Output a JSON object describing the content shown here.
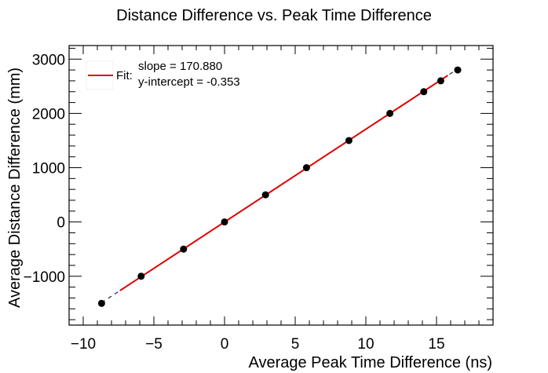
{
  "chart_data": {
    "type": "scatter",
    "title": "Distance Difference vs. Peak Time Difference",
    "xlabel": "Average Peak Time Difference (ns)",
    "ylabel": "Average Distance Difference (mm)",
    "xlim": [
      -11,
      19
    ],
    "ylim": [
      -1900,
      3250
    ],
    "xticks": [
      -10,
      -5,
      0,
      5,
      10,
      15
    ],
    "yticks": [
      -1000,
      0,
      1000,
      2000,
      3000
    ],
    "x_tick_labels": [
      "−10",
      "−5",
      "0",
      "5",
      "10",
      "15"
    ],
    "y_tick_labels": [
      "−1000",
      "0",
      "1000",
      "2000",
      "3000"
    ],
    "grid": false,
    "legend_position": "top-left",
    "series": [
      {
        "x": [
          -8.7,
          -5.9,
          -2.9,
          0.0,
          2.9,
          5.8,
          8.8,
          11.7,
          14.1,
          15.3,
          16.5
        ],
        "y": [
          -1500,
          -1000,
          -500,
          0,
          500,
          1000,
          1500,
          2000,
          2400,
          2600,
          2800
        ],
        "color": "#000000"
      }
    ],
    "fit": {
      "legend_label": "Fit:",
      "slope_text": "slope = 170.880",
      "intercept_text": "y-intercept = -0.353",
      "slope": 170.88,
      "intercept": -0.353,
      "solid_range": [
        -7.4,
        15.8
      ],
      "dashed_range": [
        -8.7,
        16.5
      ],
      "color": "#e00000"
    }
  }
}
